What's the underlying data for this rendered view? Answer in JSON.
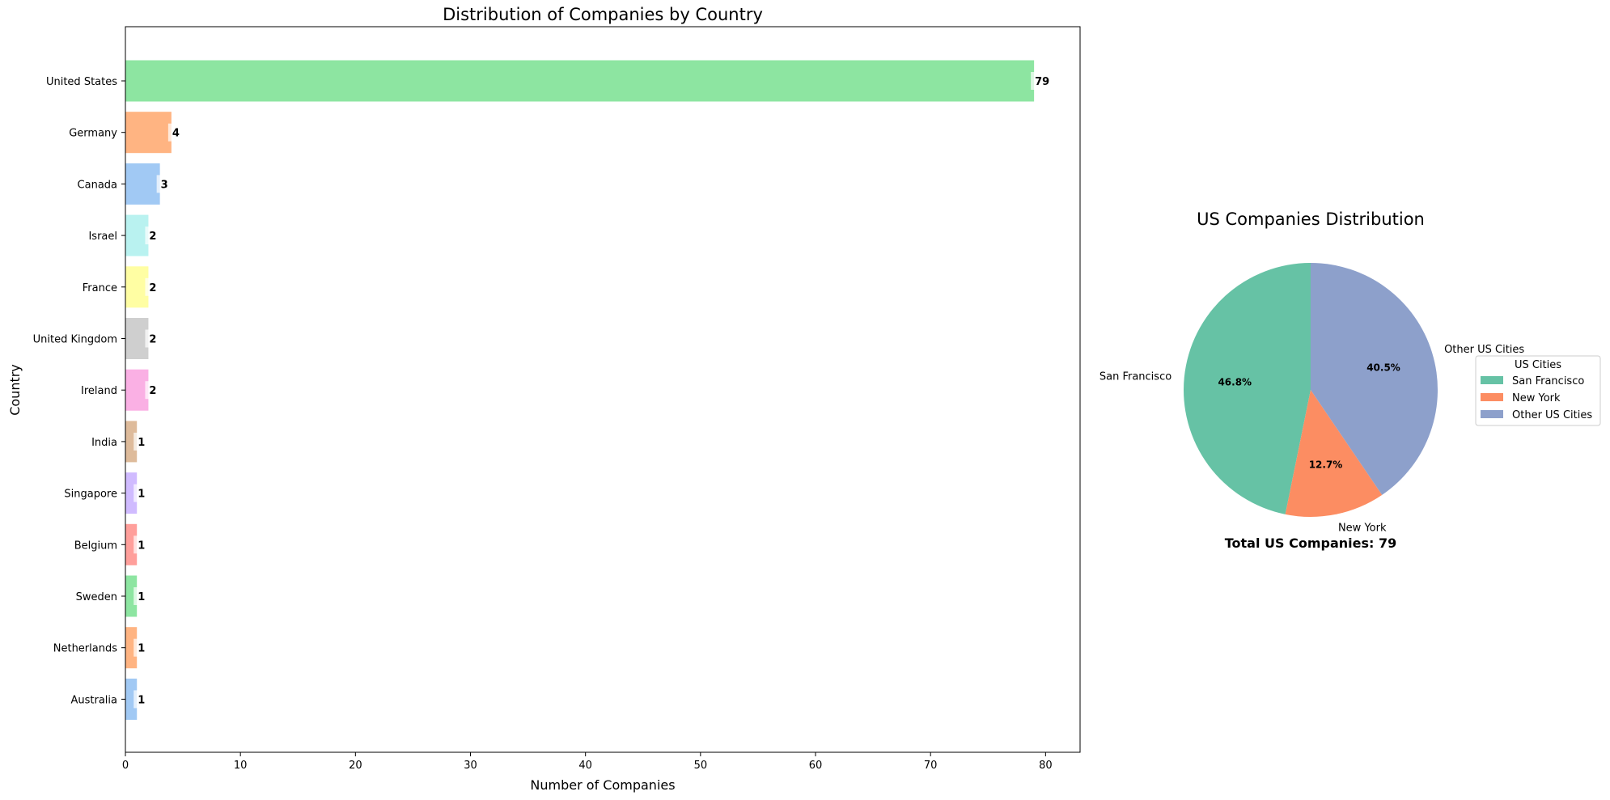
{
  "chart_data": [
    {
      "type": "bar",
      "orientation": "horizontal",
      "title": "Distribution of Companies by Country",
      "xlabel": "Number of Companies",
      "ylabel": "Country",
      "xlim": [
        0,
        83
      ],
      "xticks": [
        0,
        10,
        20,
        30,
        40,
        50,
        60,
        70,
        80
      ],
      "categories": [
        "United States",
        "Germany",
        "Canada",
        "Israel",
        "France",
        "United Kingdom",
        "Ireland",
        "India",
        "Singapore",
        "Belgium",
        "Sweden",
        "Netherlands",
        "Australia"
      ],
      "values": [
        79,
        4,
        3,
        2,
        2,
        2,
        2,
        1,
        1,
        1,
        1,
        1,
        1
      ],
      "colors": [
        "#8de5a1",
        "#ffb482",
        "#a1c9f4",
        "#b9f2f0",
        "#fffea3",
        "#cfcfcf",
        "#fab0e4",
        "#debb9b",
        "#d0bbff",
        "#ff9f9b",
        "#8de5a1",
        "#ffb482",
        "#a1c9f4"
      ],
      "grid": false
    },
    {
      "type": "pie",
      "title": "US Companies Distribution",
      "slices": [
        {
          "label": "San Francisco",
          "value": 46.8,
          "pct_label": "46.8%",
          "color": "#66c2a5"
        },
        {
          "label": "New York",
          "value": 12.7,
          "pct_label": "12.7%",
          "color": "#fc8d62"
        },
        {
          "label": "Other US Cities",
          "value": 40.5,
          "pct_label": "40.5%",
          "color": "#8da0cb"
        }
      ],
      "start_angle_deg": 90,
      "direction": "counterclockwise",
      "legend_title": "US Cities",
      "legend_placement": "right",
      "footer": "Total US Companies: 79"
    }
  ]
}
